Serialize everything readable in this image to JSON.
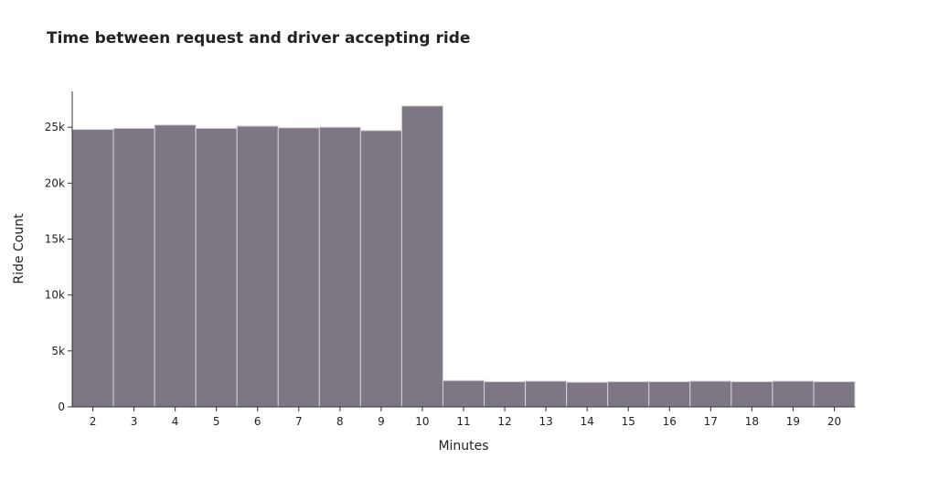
{
  "chart_data": {
    "type": "bar",
    "title": "Time between request and driver accepting ride",
    "xlabel": "Minutes",
    "ylabel": "Ride Count",
    "categories": [
      "2",
      "3",
      "4",
      "5",
      "6",
      "7",
      "8",
      "9",
      "10",
      "11",
      "12",
      "13",
      "14",
      "15",
      "16",
      "17",
      "18",
      "19",
      "20"
    ],
    "values": [
      24800,
      24900,
      25200,
      24900,
      25100,
      24950,
      25000,
      24700,
      26900,
      2350,
      2250,
      2300,
      2200,
      2250,
      2250,
      2300,
      2250,
      2300,
      2250
    ],
    "yticks": [
      0,
      5000,
      10000,
      15000,
      20000,
      25000
    ],
    "ytick_labels": [
      "0",
      "5k",
      "10k",
      "15k",
      "20k",
      "25k"
    ],
    "ylim": [
      0,
      28200
    ],
    "grid": false,
    "bar_color": "#7e7683",
    "bar_edge_color": "#d6d0da"
  }
}
